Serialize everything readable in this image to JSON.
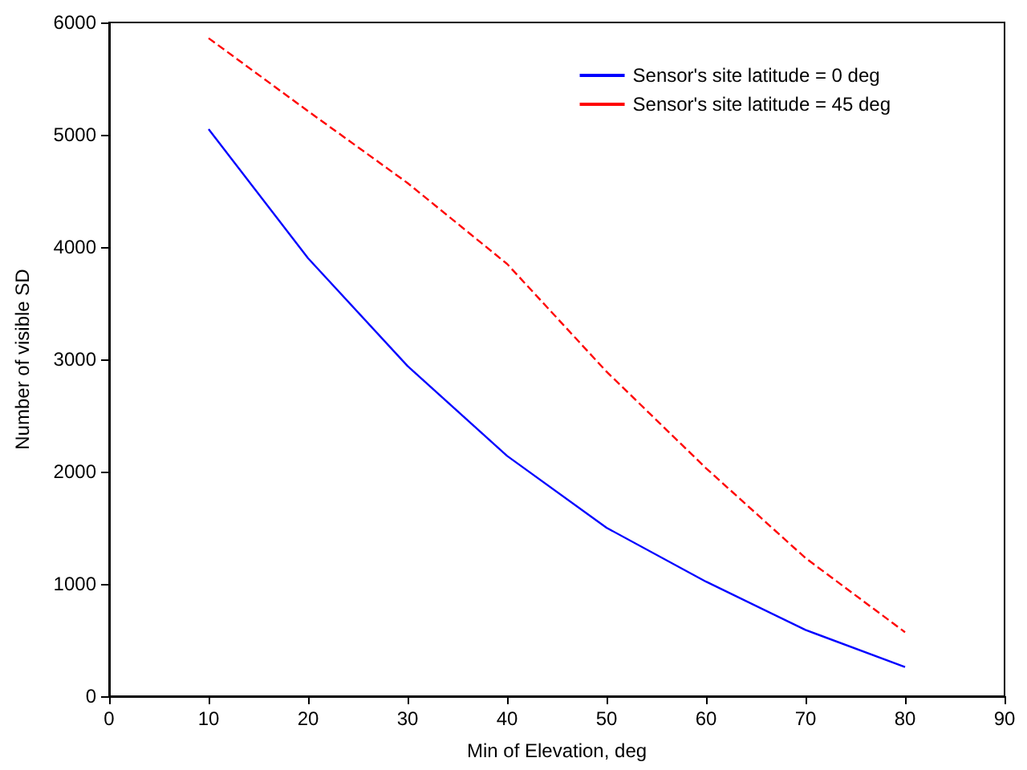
{
  "chart_data": {
    "type": "line",
    "xlabel": "Min of Elevation, deg",
    "ylabel": "Number of visible SD",
    "x": [
      10,
      20,
      30,
      40,
      50,
      60,
      70,
      80
    ],
    "series": [
      {
        "name": "Sensor's site latitude = 0 deg",
        "color": "#0000ff",
        "line_style": "solid",
        "values": [
          5050,
          3900,
          2940,
          2140,
          1500,
          1020,
          590,
          260
        ]
      },
      {
        "name": "Sensor's site latitude = 45 deg",
        "color": "#ff0000",
        "line_style": "dashed",
        "values": [
          5860,
          5210,
          4570,
          3850,
          2890,
          2030,
          1230,
          570
        ]
      }
    ],
    "xlim": [
      0,
      90
    ],
    "xticks": [
      0,
      10,
      20,
      30,
      40,
      50,
      60,
      70,
      80,
      90
    ],
    "ylim": [
      0,
      6000
    ],
    "yticks": [
      0,
      1000,
      2000,
      3000,
      4000,
      5000,
      6000
    ],
    "grid": false,
    "legend": "top right",
    "marker": "none"
  }
}
